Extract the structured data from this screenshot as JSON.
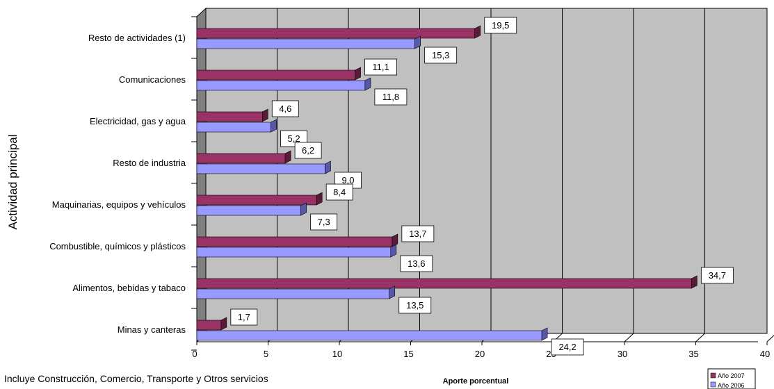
{
  "chart_data": {
    "type": "bar",
    "orientation": "horizontal",
    "categories": [
      "Resto de actividades (1)",
      "Comunicaciones",
      "Electricidad, gas y agua",
      "Resto de industria",
      "Maquinarias, equipos y vehículos",
      "Combustible, químicos y plásticos",
      "Alimentos, bebidas y tabaco",
      "Minas y canteras"
    ],
    "series": [
      {
        "name": "Año 2007",
        "color": "#993366",
        "values": [
          19.5,
          11.1,
          4.6,
          6.2,
          8.4,
          13.7,
          34.7,
          1.7
        ],
        "labels": [
          "19,5",
          "11,1",
          "4,6",
          "6,2",
          "8,4",
          "13,7",
          "34,7",
          "1,7"
        ]
      },
      {
        "name": "Año 2006",
        "color": "#9999FF",
        "values": [
          15.3,
          11.8,
          5.2,
          9.0,
          7.3,
          13.6,
          13.5,
          24.2
        ],
        "labels": [
          "15,3",
          "11,8",
          "5,2",
          "9,0",
          "7,3",
          "13,6",
          "13,5",
          "24,2"
        ]
      }
    ],
    "xticks": [
      "0",
      "5",
      "10",
      "15",
      "20",
      "25",
      "30",
      "35",
      "40"
    ],
    "xlim": [
      0,
      40
    ],
    "xlabel": "Aporte porcentual",
    "ylabel": "Actividad principal",
    "grid": true,
    "legend": "bottom-right",
    "colors": {
      "plot_background": "#C0C0C0",
      "wall": "#808080"
    }
  },
  "footnote": "Incluye Construcción, Comercio, Transporte y Otros servicios"
}
